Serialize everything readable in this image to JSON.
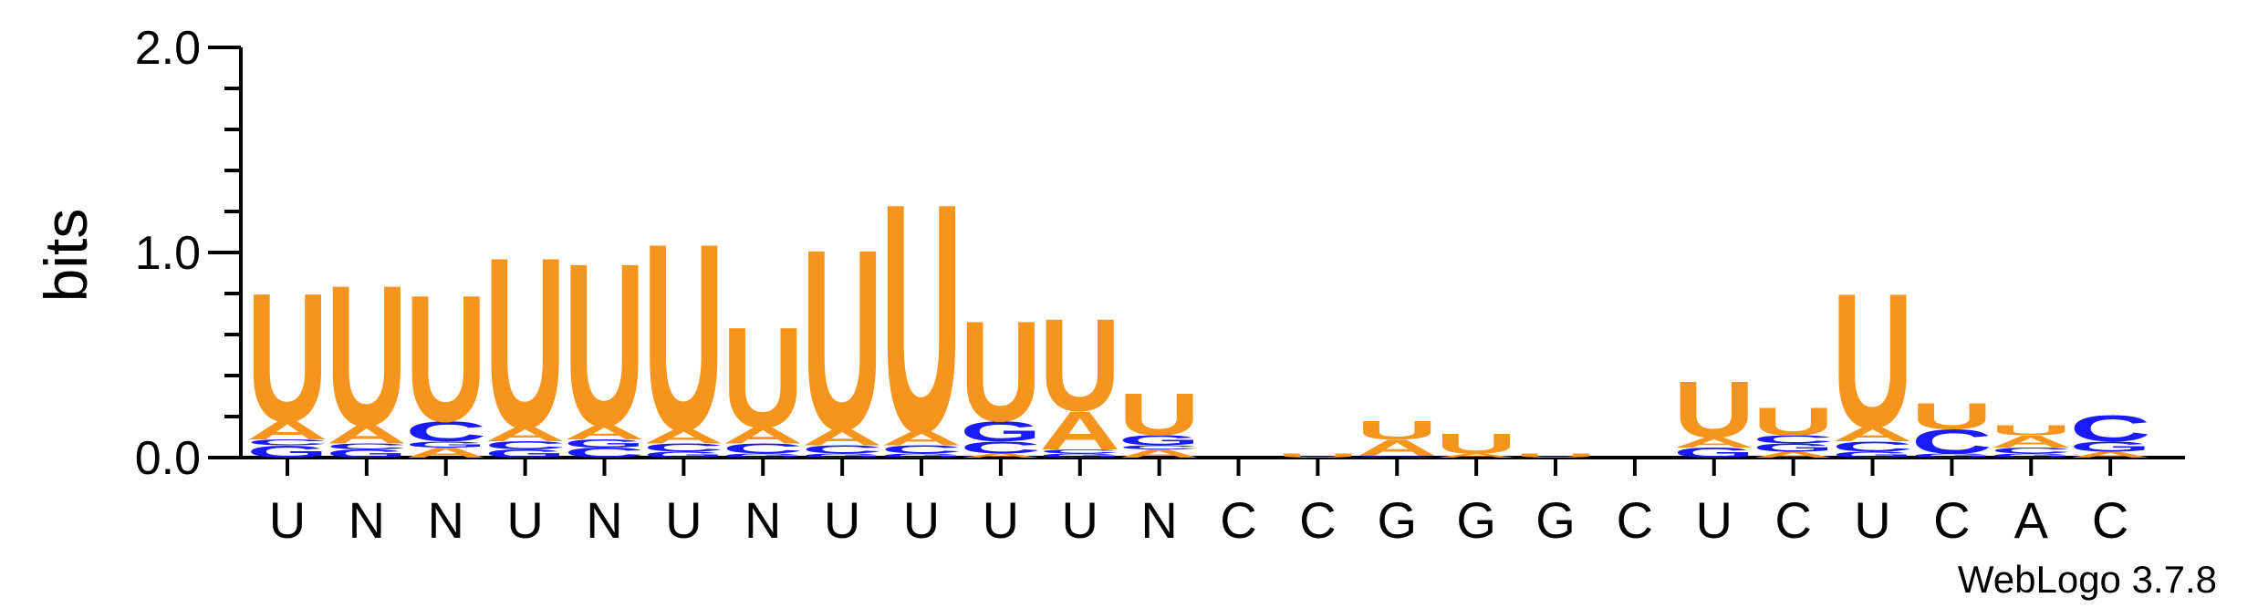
{
  "chart_data": {
    "type": "sequence-logo",
    "ylabel": "bits",
    "ylim": [
      0,
      2.0
    ],
    "yticks": [
      "0.0",
      "1.0",
      "2.0"
    ],
    "footer": "WebLogo 3.7.8",
    "colors": {
      "U": "#f7941d",
      "A": "#f7941d",
      "C": "#1a1aff",
      "G": "#1a1aff"
    },
    "positions": [
      {
        "label": "U",
        "stack": [
          {
            "l": "G",
            "h": 0.06
          },
          {
            "l": "C",
            "h": 0.03
          },
          {
            "l": "A",
            "h": 0.09
          },
          {
            "l": "U",
            "h": 0.64
          }
        ]
      },
      {
        "label": "N",
        "stack": [
          {
            "l": "G",
            "h": 0.04
          },
          {
            "l": "C",
            "h": 0.03
          },
          {
            "l": "A",
            "h": 0.09
          },
          {
            "l": "U",
            "h": 0.7
          }
        ]
      },
      {
        "label": "N",
        "stack": [
          {
            "l": "A",
            "h": 0.05
          },
          {
            "l": "G",
            "h": 0.03
          },
          {
            "l": "C",
            "h": 0.1
          },
          {
            "l": "U",
            "h": 0.63
          }
        ]
      },
      {
        "label": "U",
        "stack": [
          {
            "l": "G",
            "h": 0.04
          },
          {
            "l": "C",
            "h": 0.04
          },
          {
            "l": "A",
            "h": 0.07
          },
          {
            "l": "U",
            "h": 0.85
          }
        ]
      },
      {
        "label": "N",
        "stack": [
          {
            "l": "C",
            "h": 0.05
          },
          {
            "l": "G",
            "h": 0.04
          },
          {
            "l": "A",
            "h": 0.07
          },
          {
            "l": "U",
            "h": 0.81
          }
        ]
      },
      {
        "label": "U",
        "stack": [
          {
            "l": "G",
            "h": 0.03
          },
          {
            "l": "C",
            "h": 0.04
          },
          {
            "l": "A",
            "h": 0.07
          },
          {
            "l": "U",
            "h": 0.93
          }
        ]
      },
      {
        "label": "N",
        "stack": [
          {
            "l": "G",
            "h": 0.02
          },
          {
            "l": "C",
            "h": 0.05
          },
          {
            "l": "A",
            "h": 0.08
          },
          {
            "l": "U",
            "h": 0.5
          }
        ]
      },
      {
        "label": "U",
        "stack": [
          {
            "l": "G",
            "h": 0.02
          },
          {
            "l": "C",
            "h": 0.04
          },
          {
            "l": "A",
            "h": 0.08
          },
          {
            "l": "U",
            "h": 0.9
          }
        ]
      },
      {
        "label": "U",
        "stack": [
          {
            "l": "G",
            "h": 0.02
          },
          {
            "l": "C",
            "h": 0.04
          },
          {
            "l": "A",
            "h": 0.07
          },
          {
            "l": "U",
            "h": 1.14
          }
        ]
      },
      {
        "label": "U",
        "stack": [
          {
            "l": "A",
            "h": 0.02
          },
          {
            "l": "C",
            "h": 0.06
          },
          {
            "l": "G",
            "h": 0.1
          },
          {
            "l": "U",
            "h": 0.5
          }
        ]
      },
      {
        "label": "U",
        "stack": [
          {
            "l": "G",
            "h": 0.02
          },
          {
            "l": "C",
            "h": 0.02
          },
          {
            "l": "A",
            "h": 0.19
          },
          {
            "l": "U",
            "h": 0.46
          }
        ]
      },
      {
        "label": "N",
        "stack": [
          {
            "l": "A",
            "h": 0.04
          },
          {
            "l": "C",
            "h": 0.02
          },
          {
            "l": "G",
            "h": 0.05
          },
          {
            "l": "U",
            "h": 0.21
          }
        ]
      },
      {
        "label": "C",
        "stack": []
      },
      {
        "label": "C",
        "stack": [
          {
            "l": "U",
            "h": 0.02
          }
        ]
      },
      {
        "label": "G",
        "stack": [
          {
            "l": "G",
            "h": 0.01
          },
          {
            "l": "A",
            "h": 0.08
          },
          {
            "l": "U",
            "h": 0.09
          }
        ]
      },
      {
        "label": "G",
        "stack": [
          {
            "l": "A",
            "h": 0.02
          },
          {
            "l": "U",
            "h": 0.1
          }
        ]
      },
      {
        "label": "G",
        "stack": [
          {
            "l": "U",
            "h": 0.02
          }
        ]
      },
      {
        "label": "C",
        "stack": []
      },
      {
        "label": "U",
        "stack": [
          {
            "l": "G",
            "h": 0.05
          },
          {
            "l": "A",
            "h": 0.05
          },
          {
            "l": "U",
            "h": 0.28
          }
        ]
      },
      {
        "label": "C",
        "stack": [
          {
            "l": "A",
            "h": 0.03
          },
          {
            "l": "G",
            "h": 0.04
          },
          {
            "l": "C",
            "h": 0.04
          },
          {
            "l": "U",
            "h": 0.14
          }
        ]
      },
      {
        "label": "U",
        "stack": [
          {
            "l": "G",
            "h": 0.03
          },
          {
            "l": "C",
            "h": 0.05
          },
          {
            "l": "A",
            "h": 0.07
          },
          {
            "l": "U",
            "h": 0.67
          }
        ]
      },
      {
        "label": "C",
        "stack": [
          {
            "l": "G",
            "h": 0.02
          },
          {
            "l": "C",
            "h": 0.12
          },
          {
            "l": "U",
            "h": 0.13
          }
        ]
      },
      {
        "label": "A",
        "stack": [
          {
            "l": "G",
            "h": 0.02
          },
          {
            "l": "C",
            "h": 0.03
          },
          {
            "l": "A",
            "h": 0.06
          },
          {
            "l": "U",
            "h": 0.05
          }
        ]
      },
      {
        "label": "C",
        "stack": [
          {
            "l": "A",
            "h": 0.03
          },
          {
            "l": "G",
            "h": 0.05
          },
          {
            "l": "C",
            "h": 0.13
          }
        ]
      }
    ]
  }
}
